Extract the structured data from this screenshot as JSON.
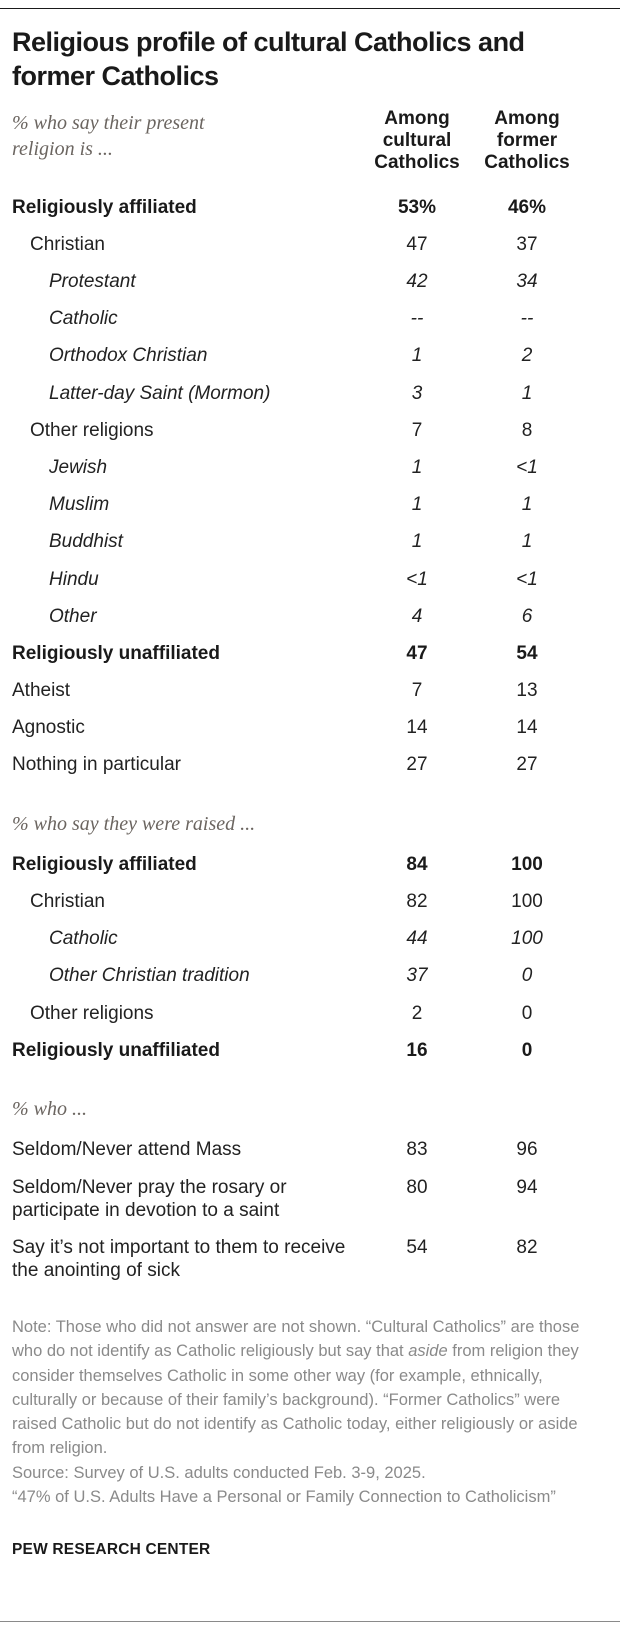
{
  "colors": {
    "title_text": "#1a1a1a",
    "body_text": "#222222",
    "section_label_text": "#6b6560",
    "note_text": "#8a8a8a"
  },
  "chart_data": {
    "type": "table",
    "title": "Religious profile of cultural Catholics and former Catholics",
    "columns": [
      "Among cultural Catholics",
      "Among former Catholics"
    ],
    "sections": [
      {
        "label": "% who say their present religion is ...",
        "rows": [
          {
            "label": "Religiously affiliated",
            "values": [
              "53%",
              "46%"
            ],
            "style": "bold",
            "indent": 0
          },
          {
            "label": "Christian",
            "values": [
              "47",
              "37"
            ],
            "style": "regular",
            "indent": 1
          },
          {
            "label": "Protestant",
            "values": [
              "42",
              "34"
            ],
            "style": "italic",
            "indent": 2
          },
          {
            "label": "Catholic",
            "values": [
              "--",
              "--"
            ],
            "style": "italic",
            "indent": 2
          },
          {
            "label": "Orthodox Christian",
            "values": [
              "1",
              "2"
            ],
            "style": "italic",
            "indent": 2
          },
          {
            "label": "Latter-day Saint (Mormon)",
            "values": [
              "3",
              "1"
            ],
            "style": "italic",
            "indent": 2
          },
          {
            "label": "Other religions",
            "values": [
              "7",
              "8"
            ],
            "style": "regular",
            "indent": 1
          },
          {
            "label": "Jewish",
            "values": [
              "1",
              "<1"
            ],
            "style": "italic",
            "indent": 2
          },
          {
            "label": "Muslim",
            "values": [
              "1",
              "1"
            ],
            "style": "italic",
            "indent": 2
          },
          {
            "label": "Buddhist",
            "values": [
              "1",
              "1"
            ],
            "style": "italic",
            "indent": 2
          },
          {
            "label": "Hindu",
            "values": [
              "<1",
              "<1"
            ],
            "style": "italic",
            "indent": 2
          },
          {
            "label": "Other",
            "values": [
              "4",
              "6"
            ],
            "style": "italic",
            "indent": 2
          },
          {
            "label": "Religiously unaffiliated",
            "values": [
              "47",
              "54"
            ],
            "style": "bold",
            "indent": 0
          },
          {
            "label": "Atheist",
            "values": [
              "7",
              "13"
            ],
            "style": "regular",
            "indent": 0
          },
          {
            "label": "Agnostic",
            "values": [
              "14",
              "14"
            ],
            "style": "regular",
            "indent": 0
          },
          {
            "label": "Nothing in particular",
            "values": [
              "27",
              "27"
            ],
            "style": "regular",
            "indent": 0
          }
        ]
      },
      {
        "label": "% who say they were raised ...",
        "rows": [
          {
            "label": "Religiously affiliated",
            "values": [
              "84",
              "100"
            ],
            "style": "bold",
            "indent": 0
          },
          {
            "label": "Christian",
            "values": [
              "82",
              "100"
            ],
            "style": "regular",
            "indent": 1
          },
          {
            "label": "Catholic",
            "values": [
              "44",
              "100"
            ],
            "style": "italic",
            "indent": 2
          },
          {
            "label": "Other Christian tradition",
            "values": [
              "37",
              "0"
            ],
            "style": "italic",
            "indent": 2
          },
          {
            "label": "Other religions",
            "values": [
              "2",
              "0"
            ],
            "style": "regular",
            "indent": 1
          },
          {
            "label": "Religiously unaffiliated",
            "values": [
              "16",
              "0"
            ],
            "style": "bold",
            "indent": 0
          }
        ]
      },
      {
        "label": "% who ...",
        "rows": [
          {
            "label": "Seldom/Never attend Mass",
            "values": [
              "83",
              "96"
            ],
            "style": "regular",
            "indent": 0
          },
          {
            "label": "Seldom/Never pray the rosary or participate in devotion to a saint",
            "values": [
              "80",
              "94"
            ],
            "style": "regular",
            "indent": 0
          },
          {
            "label": "Say it’s not important to them to receive the anointing of sick",
            "values": [
              "54",
              "82"
            ],
            "style": "regular",
            "indent": 0
          }
        ]
      }
    ]
  },
  "notes": {
    "note_part1": "Note: Those who did not answer are not shown. “Cultural Catholics” are those who do not identify as Catholic religiously but say that ",
    "note_italic": "aside",
    "note_part2": " from religion they consider themselves Catholic in some other way (for example, ethnically, culturally or because of their family’s background). “Former Catholics” were raised Catholic but do not identify as Catholic today, either religiously or aside from religion.",
    "source": "Source: Survey of U.S. adults conducted Feb. 3-9, 2025.",
    "report": "“47% of U.S. Adults Have a Personal or Family Connection to Catholicism”",
    "footer": "PEW RESEARCH CENTER"
  }
}
